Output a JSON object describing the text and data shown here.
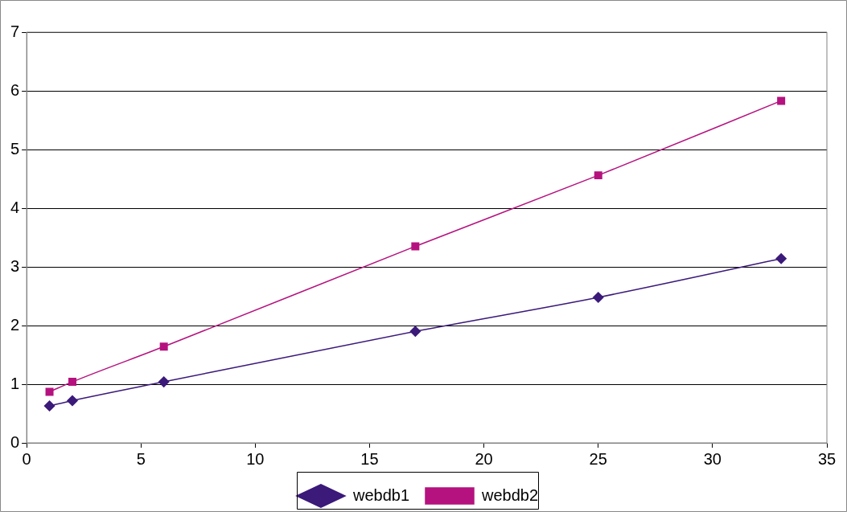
{
  "chart_data": {
    "type": "line",
    "xlim": [
      0,
      35
    ],
    "xticks": [
      0,
      5,
      10,
      15,
      20,
      25,
      30,
      35
    ],
    "ylim": [
      0,
      7
    ],
    "yticks": [
      0,
      1,
      2,
      3,
      4,
      5,
      6,
      7
    ],
    "grid": "y",
    "legend": "bottom",
    "line_style": "solid",
    "series": [
      {
        "name": "webdb1",
        "color": "#3b1a7a",
        "marker": "diamond",
        "x": [
          1,
          2,
          6,
          17,
          25,
          33
        ],
        "values": [
          0.63,
          0.72,
          1.04,
          1.9,
          2.48,
          3.14
        ]
      },
      {
        "name": "webdb2",
        "color": "#b5127f",
        "marker": "square",
        "x": [
          1,
          2,
          6,
          17,
          25,
          33
        ],
        "values": [
          0.87,
          1.04,
          1.64,
          3.35,
          4.56,
          5.83
        ]
      }
    ]
  }
}
